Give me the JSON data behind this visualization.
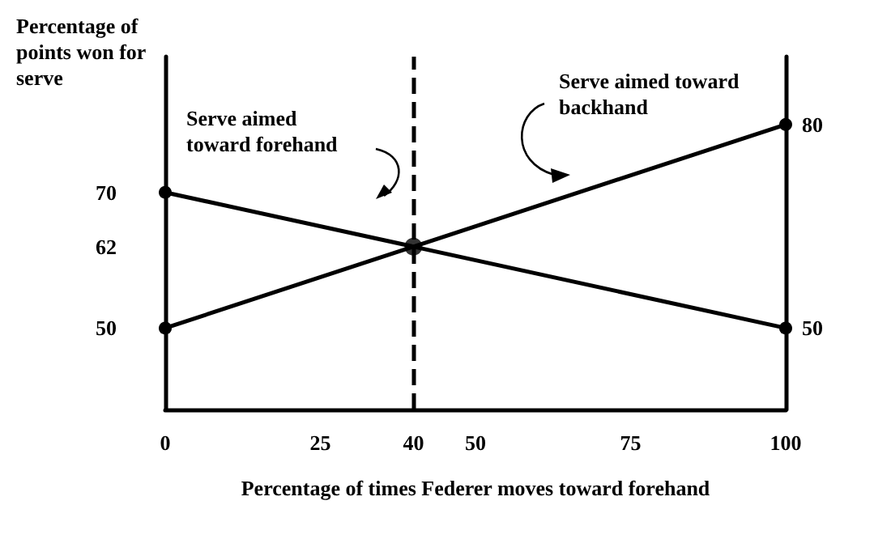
{
  "chart_data": {
    "type": "line",
    "xlabel": "Percentage of times Federer moves toward forehand",
    "ylabel": "Percentage of points won for serve",
    "x": [
      0,
      100
    ],
    "series": [
      {
        "name": "Serve aimed toward forehand",
        "color": "#000000",
        "values": [
          70,
          50
        ]
      },
      {
        "name": "Serve aimed toward backhand",
        "color": "#000000",
        "values": [
          50,
          80
        ]
      },
      {
        "type": "scatter",
        "color": "#000000",
        "x": [
          40
        ],
        "values": [
          62
        ]
      }
    ],
    "xlim": [
      0,
      100
    ],
    "xticks": [
      0,
      25,
      40,
      50,
      75,
      100
    ],
    "ylim": [
      38,
      90
    ],
    "yticks": [
      50,
      62,
      70
    ],
    "y2lim": [
      38,
      90
    ],
    "y2ticks": [
      50,
      80
    ],
    "ref_lines": [
      {
        "axis": "x",
        "value": 40,
        "color": "#000000",
        "line_style": "dashed"
      }
    ],
    "marker": "circle",
    "line_style": "solid",
    "legend": false,
    "grid": false
  }
}
